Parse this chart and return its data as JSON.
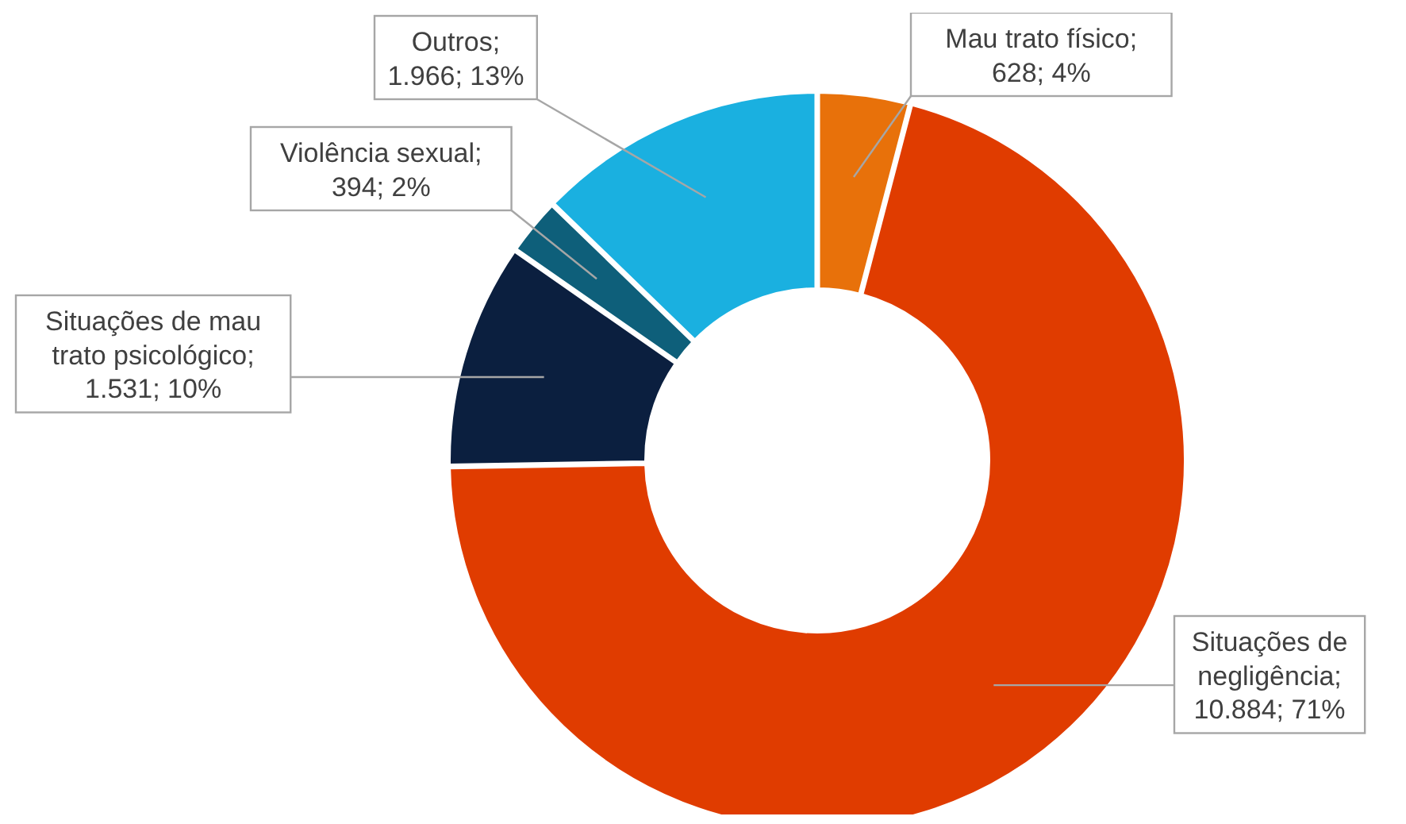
{
  "chart_data": {
    "type": "donut",
    "categories": [
      "Mau trato físico",
      "Situações de negligência",
      "Situações de mau trato psicológico",
      "Violência sexual",
      "Outros"
    ],
    "values": [
      628,
      10884,
      1531,
      394,
      1966
    ],
    "value_labels": [
      "; 628; 4%",
      "; 10.884; 71%",
      "; 1.531; 10%",
      "; 394; 2%",
      "; 1.966; 13%"
    ],
    "colors": [
      "#e8710a",
      "#e03c00",
      "#0b1f3f",
      "#0e5f7a",
      "#1ab0e0"
    ]
  }
}
